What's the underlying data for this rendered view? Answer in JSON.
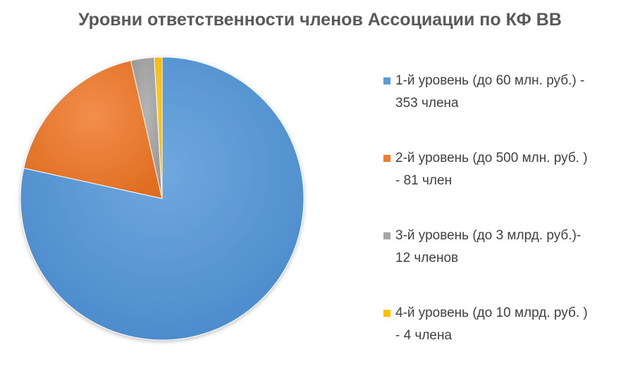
{
  "chart_data": {
    "type": "pie",
    "title": "Уровни ответственности членов Ассоциации по КФ ВВ",
    "legend_position": "right",
    "series": [
      {
        "name": "1-й уровень (до 60 млн. руб.) - 353 члена",
        "value": 353,
        "color": "#5B9BD5"
      },
      {
        "name": "2-й уровень (до 500 млн. руб. ) - 81 член",
        "value": 81,
        "color": "#ED7D31"
      },
      {
        "name": "3-й уровень (до 3 млрд. руб.)- 12 членов",
        "value": 12,
        "color": "#A5A5A5"
      },
      {
        "name": "4-й уровень (до 10 млрд. руб. ) - 4 члена",
        "value": 4,
        "color": "#FFC000"
      }
    ]
  },
  "legend": {
    "items": [
      {
        "line1": "1-й уровень (до 60 млн. руб.) -",
        "line2": "353 члена"
      },
      {
        "line1": "2-й уровень (до 500 млн. руб. )",
        "line2": "- 81 член"
      },
      {
        "line1": "3-й уровень (до 3 млрд. руб.)-",
        "line2": "12 членов"
      },
      {
        "line1": "4-й уровень (до 10 млрд. руб. )",
        "line2": "- 4 члена"
      }
    ]
  }
}
